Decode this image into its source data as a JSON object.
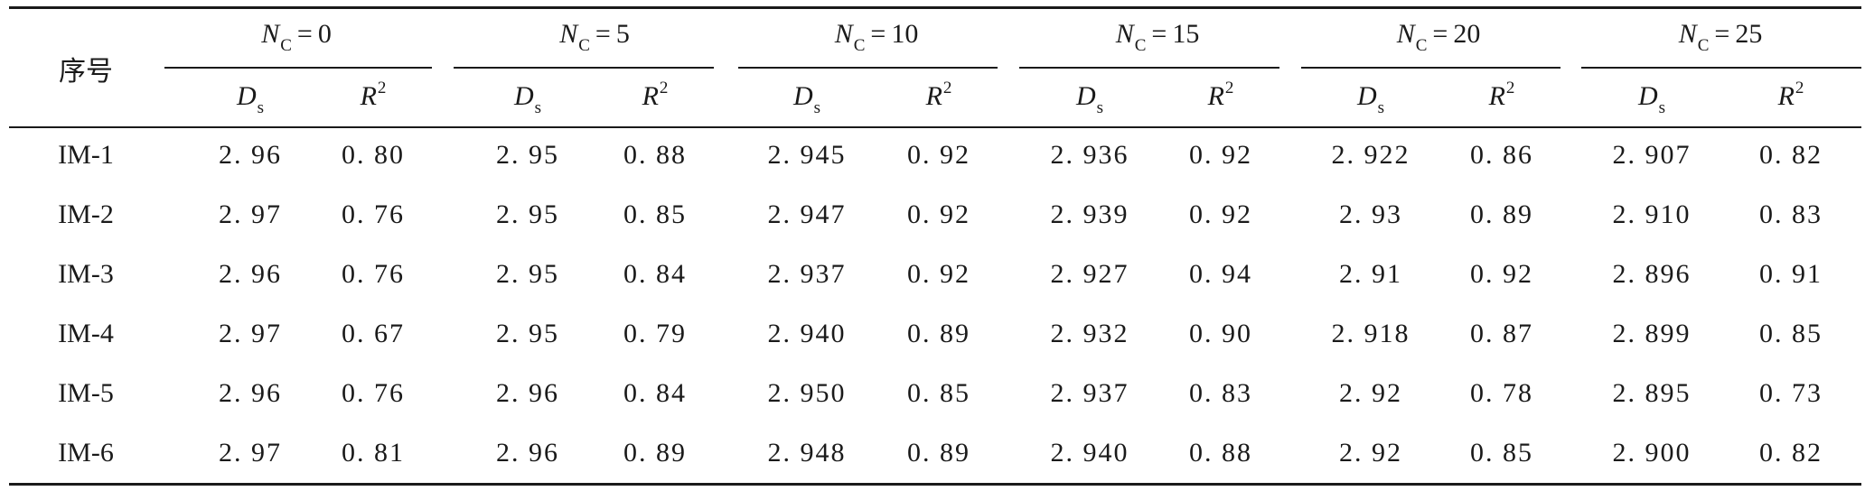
{
  "table": {
    "seq_header": "序号",
    "nc_symbol": "N",
    "nc_subscript": "C",
    "equals": "=",
    "groups": [
      "0",
      "5",
      "10",
      "15",
      "20",
      "25"
    ],
    "col_d_symbol": "D",
    "col_d_subscript": "s",
    "col_r_symbol": "R",
    "col_r_superscript": "2",
    "rows": [
      {
        "label": "IM-1",
        "values": [
          "2. 96",
          "0. 80",
          "2. 95",
          "0. 88",
          "2. 945",
          "0. 92",
          "2. 936",
          "0. 92",
          "2. 922",
          "0. 86",
          "2. 907",
          "0. 82"
        ]
      },
      {
        "label": "IM-2",
        "values": [
          "2. 97",
          "0. 76",
          "2. 95",
          "0. 85",
          "2. 947",
          "0. 92",
          "2. 939",
          "0. 92",
          "2. 93",
          "0. 89",
          "2. 910",
          "0. 83"
        ]
      },
      {
        "label": "IM-3",
        "values": [
          "2. 96",
          "0. 76",
          "2. 95",
          "0. 84",
          "2. 937",
          "0. 92",
          "2. 927",
          "0. 94",
          "2. 91",
          "0. 92",
          "2. 896",
          "0. 91"
        ]
      },
      {
        "label": "IM-4",
        "values": [
          "2. 97",
          "0. 67",
          "2. 95",
          "0. 79",
          "2. 940",
          "0. 89",
          "2. 932",
          "0. 90",
          "2. 918",
          "0. 87",
          "2. 899",
          "0. 85"
        ]
      },
      {
        "label": "IM-5",
        "values": [
          "2. 96",
          "0. 76",
          "2. 96",
          "0. 84",
          "2. 950",
          "0. 85",
          "2. 937",
          "0. 83",
          "2. 92",
          "0. 78",
          "2. 895",
          "0. 73"
        ]
      },
      {
        "label": "IM-6",
        "values": [
          "2. 97",
          "0. 81",
          "2. 96",
          "0. 89",
          "2. 948",
          "0. 89",
          "2. 940",
          "0. 88",
          "2. 92",
          "0. 85",
          "2. 900",
          "0. 82"
        ]
      }
    ]
  }
}
